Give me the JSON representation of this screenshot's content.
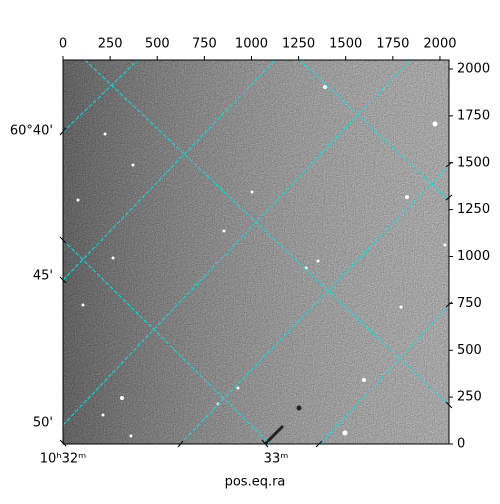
{
  "chart_data": {
    "type": "image",
    "xlabel": "pos.eq.ra",
    "xlim": [
      0,
      2048
    ],
    "xticks": [
      0,
      250,
      500,
      750,
      1000,
      1250,
      1500,
      1750,
      2000
    ],
    "ylim": [
      0,
      2048
    ],
    "yticks": [
      0,
      250,
      500,
      750,
      1000,
      1250,
      1500,
      1750,
      2000
    ],
    "dec_labels": [
      "60°40'",
      "45'",
      "50'"
    ],
    "ra_labels": [
      "10ʰ32ᵐ",
      "33ᵐ"
    ],
    "grid": true,
    "grid_color": "#00e5e5"
  }
}
